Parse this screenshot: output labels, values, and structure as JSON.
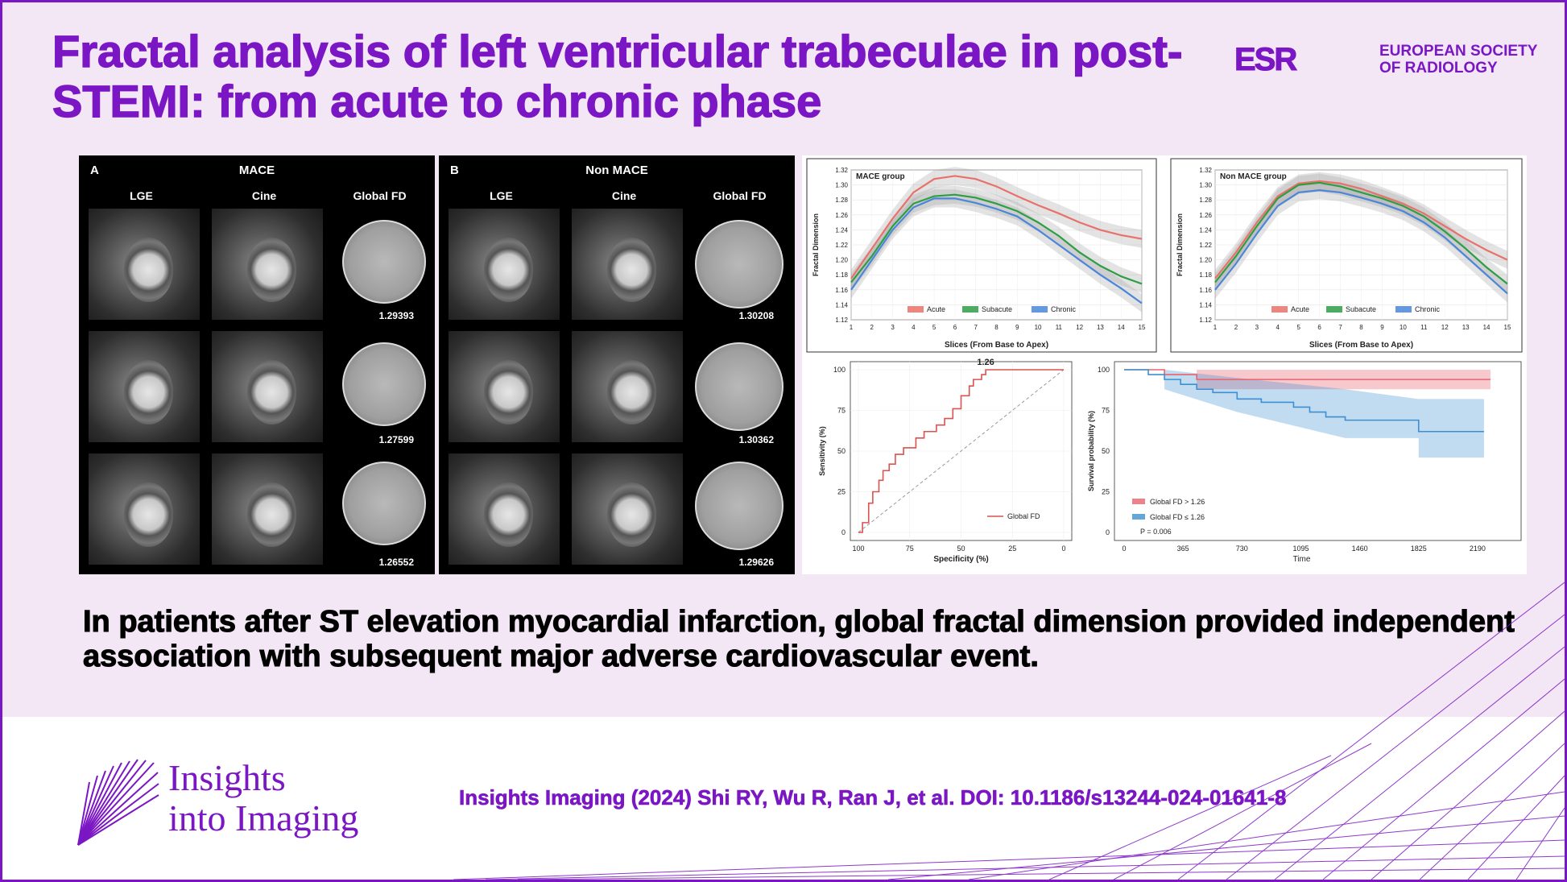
{
  "title": "Fractal analysis of left ventricular trabeculae in post-STEMI: from acute to chronic phase",
  "esr_logo": {
    "mark": "ESR",
    "org_line1": "EUROPEAN SOCIETY",
    "org_line2": "OF RADIOLOGY"
  },
  "panel_a": {
    "letter": "A",
    "title": "MACE",
    "col_lge": "LGE",
    "col_cine": "Cine",
    "col_fd": "Global FD",
    "fd_values": [
      "1.29393",
      "1.27599",
      "1.26552"
    ]
  },
  "panel_b": {
    "letter": "B",
    "title": "Non MACE",
    "col_lge": "LGE",
    "col_cine": "Cine",
    "col_fd": "Global FD",
    "fd_values": [
      "1.30208",
      "1.30362",
      "1.29626"
    ]
  },
  "chart_data": [
    {
      "type": "line",
      "title": "MACE group",
      "xlabel": "Slices (From Base to Apex)",
      "ylabel": "Fractal Dimension",
      "x": [
        1,
        2,
        3,
        4,
        5,
        6,
        7,
        8,
        9,
        10,
        11,
        12,
        13,
        14,
        15
      ],
      "xlim": [
        1,
        15
      ],
      "ylim": [
        1.12,
        1.32
      ],
      "yticks": [
        1.12,
        1.14,
        1.16,
        1.18,
        1.2,
        1.22,
        1.24,
        1.26,
        1.28,
        1.3,
        1.32
      ],
      "legend": "bottom",
      "series": [
        {
          "name": "Acute",
          "color": "#e8716b",
          "values": [
            1.175,
            1.215,
            1.255,
            1.29,
            1.308,
            1.312,
            1.308,
            1.298,
            1.285,
            1.273,
            1.262,
            1.25,
            1.24,
            1.233,
            1.228
          ]
        },
        {
          "name": "Subacute",
          "color": "#2e9e45",
          "values": [
            1.17,
            1.205,
            1.245,
            1.275,
            1.285,
            1.287,
            1.283,
            1.275,
            1.265,
            1.25,
            1.232,
            1.21,
            1.192,
            1.178,
            1.168
          ]
        },
        {
          "name": "Chronic",
          "color": "#4a86d9",
          "values": [
            1.16,
            1.2,
            1.24,
            1.27,
            1.282,
            1.282,
            1.276,
            1.268,
            1.258,
            1.24,
            1.22,
            1.2,
            1.18,
            1.162,
            1.142
          ]
        }
      ]
    },
    {
      "type": "line",
      "title": "Non MACE group",
      "xlabel": "Slices (From Base to Apex)",
      "ylabel": "Fractal Dimension",
      "x": [
        1,
        2,
        3,
        4,
        5,
        6,
        7,
        8,
        9,
        10,
        11,
        12,
        13,
        14,
        15
      ],
      "xlim": [
        1,
        15
      ],
      "ylim": [
        1.12,
        1.32
      ],
      "yticks": [
        1.12,
        1.14,
        1.16,
        1.18,
        1.2,
        1.22,
        1.24,
        1.26,
        1.28,
        1.3,
        1.32
      ],
      "legend": "bottom",
      "series": [
        {
          "name": "Acute",
          "color": "#e8716b",
          "values": [
            1.175,
            1.21,
            1.25,
            1.285,
            1.302,
            1.305,
            1.302,
            1.295,
            1.285,
            1.275,
            1.262,
            1.245,
            1.228,
            1.213,
            1.2
          ]
        },
        {
          "name": "Subacute",
          "color": "#2e9e45",
          "values": [
            1.17,
            1.205,
            1.245,
            1.282,
            1.3,
            1.303,
            1.298,
            1.29,
            1.282,
            1.272,
            1.258,
            1.238,
            1.215,
            1.19,
            1.168
          ]
        },
        {
          "name": "Chronic",
          "color": "#4a86d9",
          "values": [
            1.16,
            1.195,
            1.235,
            1.272,
            1.29,
            1.293,
            1.29,
            1.283,
            1.275,
            1.265,
            1.25,
            1.23,
            1.205,
            1.18,
            1.155
          ]
        }
      ]
    },
    {
      "type": "line",
      "xlabel": "Specificity (%)",
      "ylabel": "Sensitivity (%)",
      "xticks": [
        100,
        75,
        50,
        25,
        0
      ],
      "yticks": [
        0,
        25,
        50,
        75,
        100
      ],
      "annotation": "1.26",
      "legend": "bottom-right",
      "series": [
        {
          "name": "Global FD",
          "color": "#d9534f",
          "points": [
            [
              100,
              0
            ],
            [
              98,
              0
            ],
            [
              98,
              6
            ],
            [
              95,
              6
            ],
            [
              95,
              18
            ],
            [
              93,
              18
            ],
            [
              93,
              25
            ],
            [
              90,
              25
            ],
            [
              90,
              32
            ],
            [
              88,
              32
            ],
            [
              88,
              38
            ],
            [
              85,
              38
            ],
            [
              85,
              42
            ],
            [
              82,
              42
            ],
            [
              82,
              48
            ],
            [
              78,
              48
            ],
            [
              78,
              52
            ],
            [
              72,
              52
            ],
            [
              72,
              58
            ],
            [
              68,
              58
            ],
            [
              68,
              62
            ],
            [
              62,
              62
            ],
            [
              62,
              66
            ],
            [
              58,
              66
            ],
            [
              58,
              70
            ],
            [
              54,
              70
            ],
            [
              54,
              76
            ],
            [
              50,
              76
            ],
            [
              50,
              84
            ],
            [
              46,
              84
            ],
            [
              46,
              90
            ],
            [
              44,
              90
            ],
            [
              44,
              94
            ],
            [
              40,
              94
            ],
            [
              40,
              97
            ],
            [
              38,
              97
            ],
            [
              38,
              100
            ],
            [
              0,
              100
            ]
          ]
        },
        {
          "name": "reference",
          "color": "#9a9a9a",
          "points": [
            [
              100,
              0
            ],
            [
              0,
              100
            ]
          ]
        }
      ]
    },
    {
      "type": "line",
      "xlabel": "Time",
      "ylabel": "Survival probability (%)",
      "xticks": [
        0,
        365,
        730,
        1095,
        1460,
        1825,
        2190
      ],
      "yticks": [
        0,
        25,
        50,
        75,
        100
      ],
      "pvalue": "P = 0.006",
      "legend": "bottom-left",
      "series": [
        {
          "name": "Global FD > 1.26",
          "color": "#e8636e",
          "points": [
            [
              0,
              100
            ],
            [
              250,
              100
            ],
            [
              250,
              97
            ],
            [
              450,
              97
            ],
            [
              450,
              94
            ],
            [
              2270,
              94
            ]
          ]
        },
        {
          "name": "Global FD ≤ 1.26",
          "color": "#3d8fd1",
          "points": [
            [
              0,
              100
            ],
            [
              150,
              100
            ],
            [
              150,
              97
            ],
            [
              250,
              97
            ],
            [
              250,
              94
            ],
            [
              350,
              94
            ],
            [
              350,
              91
            ],
            [
              450,
              91
            ],
            [
              450,
              88
            ],
            [
              550,
              88
            ],
            [
              550,
              86
            ],
            [
              700,
              86
            ],
            [
              700,
              82
            ],
            [
              850,
              82
            ],
            [
              850,
              80
            ],
            [
              1050,
              80
            ],
            [
              1050,
              77
            ],
            [
              1150,
              77
            ],
            [
              1150,
              74
            ],
            [
              1250,
              74
            ],
            [
              1250,
              71
            ],
            [
              1370,
              71
            ],
            [
              1370,
              69
            ],
            [
              1825,
              69
            ],
            [
              1825,
              62
            ],
            [
              2230,
              62
            ]
          ]
        }
      ]
    }
  ],
  "conclusion": "In patients after ST elevation myocardial infarction, global fractal dimension provided independent association with subsequent major adverse cardiovascular event.",
  "journal_logo": {
    "line1": "Insights",
    "line2": "into Imaging"
  },
  "citation": "Insights Imaging (2024) Shi RY, Wu R, Ran J, et al. DOI: 10.1186/s13244-024-01641-8"
}
